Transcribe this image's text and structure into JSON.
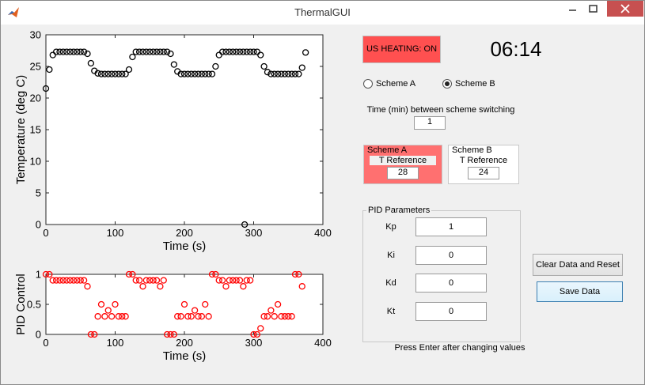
{
  "window": {
    "title": "ThermalGUI"
  },
  "status": "US HEATING: ON",
  "timer": "06:14",
  "schemes": {
    "options": [
      "Scheme A",
      "Scheme B"
    ],
    "selected": 1
  },
  "switching": {
    "label": "Time (min) between scheme switching",
    "value": 1
  },
  "scheme_panels": {
    "highlighted": 0,
    "panels": [
      {
        "title": "Scheme A",
        "label": "T Reference",
        "value": 28
      },
      {
        "title": "Scheme B",
        "label": "T Reference",
        "value": 24
      }
    ]
  },
  "pid": {
    "title": "PID Parameters",
    "params": [
      {
        "label": "Kp",
        "value": 1
      },
      {
        "label": "Ki",
        "value": 0
      },
      {
        "label": "Kd",
        "value": 0
      },
      {
        "label": "Kt",
        "value": 0
      }
    ],
    "hint": "Press Enter after changing values"
  },
  "buttons": [
    "Clear Data and Reset",
    "Save Data"
  ],
  "chart_data": [
    {
      "type": "scatter",
      "xlabel": "Time (s)",
      "ylabel": "Temperature (deg C)",
      "color": "#000000",
      "xlim": [
        0,
        400
      ],
      "xticks": [
        0,
        100,
        200,
        300,
        400
      ],
      "ylim": [
        0,
        30
      ],
      "yticks": [
        0,
        5,
        10,
        15,
        20,
        25,
        30
      ],
      "x": [
        0,
        5,
        10,
        15,
        20,
        25,
        30,
        35,
        40,
        45,
        50,
        55,
        60,
        65,
        70,
        75,
        80,
        85,
        90,
        95,
        100,
        105,
        110,
        115,
        120,
        125,
        130,
        135,
        140,
        145,
        150,
        155,
        160,
        165,
        170,
        175,
        180,
        185,
        190,
        195,
        200,
        205,
        210,
        215,
        220,
        225,
        230,
        235,
        240,
        245,
        250,
        255,
        260,
        265,
        270,
        275,
        280,
        285,
        290,
        295,
        300,
        305,
        310,
        315,
        320,
        325,
        330,
        335,
        340,
        345,
        350,
        355,
        360,
        365,
        370,
        375,
        287
      ],
      "values": [
        21.5,
        24.5,
        26.8,
        27.3,
        27.3,
        27.3,
        27.3,
        27.3,
        27.3,
        27.3,
        27.3,
        27.3,
        27.0,
        25.5,
        24.3,
        23.9,
        23.8,
        23.8,
        23.8,
        23.8,
        23.8,
        23.8,
        23.8,
        23.8,
        24.5,
        26.5,
        27.3,
        27.3,
        27.3,
        27.3,
        27.3,
        27.3,
        27.3,
        27.3,
        27.3,
        27.3,
        27.0,
        25.3,
        24.2,
        23.8,
        23.8,
        23.8,
        23.8,
        23.8,
        23.8,
        23.8,
        23.8,
        23.8,
        23.8,
        25.0,
        26.8,
        27.3,
        27.3,
        27.3,
        27.3,
        27.3,
        27.3,
        27.3,
        27.3,
        27.3,
        27.3,
        27.3,
        26.8,
        25.0,
        24.1,
        23.8,
        23.8,
        23.8,
        23.8,
        23.8,
        23.8,
        23.8,
        23.8,
        23.8,
        24.8,
        27.2,
        0
      ]
    },
    {
      "type": "scatter",
      "xlabel": "Time (s)",
      "ylabel": "PID Control",
      "color": "#ff0000",
      "xlim": [
        0,
        400
      ],
      "xticks": [
        0,
        100,
        200,
        300,
        400
      ],
      "ylim": [
        0,
        1
      ],
      "yticks": [
        0,
        0.5,
        1
      ],
      "x": [
        0,
        5,
        10,
        15,
        20,
        25,
        30,
        35,
        40,
        45,
        50,
        55,
        60,
        65,
        70,
        75,
        80,
        85,
        90,
        95,
        100,
        105,
        110,
        115,
        120,
        125,
        130,
        135,
        140,
        145,
        150,
        155,
        160,
        165,
        170,
        175,
        180,
        185,
        190,
        195,
        200,
        205,
        210,
        215,
        220,
        225,
        230,
        235,
        240,
        245,
        250,
        255,
        260,
        265,
        270,
        275,
        280,
        285,
        290,
        295,
        300,
        305,
        310,
        315,
        320,
        325,
        330,
        335,
        340,
        345,
        350,
        355,
        360,
        365,
        370
      ],
      "values": [
        1,
        1,
        0.9,
        0.9,
        0.9,
        0.9,
        0.9,
        0.9,
        0.9,
        0.9,
        0.9,
        0.9,
        0.8,
        0,
        0,
        0.3,
        0.5,
        0.3,
        0.4,
        0.3,
        0.5,
        0.3,
        0.3,
        0.3,
        1,
        1,
        0.9,
        0.9,
        0.8,
        0.9,
        0.9,
        0.9,
        0.9,
        0.8,
        0.9,
        0,
        0,
        0,
        0.3,
        0.3,
        0.5,
        0.3,
        0.3,
        0.4,
        0.3,
        0.3,
        0.5,
        0.3,
        1,
        1,
        0.9,
        0.9,
        0.8,
        0.9,
        0.9,
        0.9,
        0.9,
        0.8,
        0.9,
        0.9,
        0,
        0,
        0.1,
        0.3,
        0.3,
        0.4,
        0.3,
        0.5,
        0.3,
        0.3,
        0.3,
        0.3,
        1,
        1,
        0.8
      ]
    }
  ]
}
